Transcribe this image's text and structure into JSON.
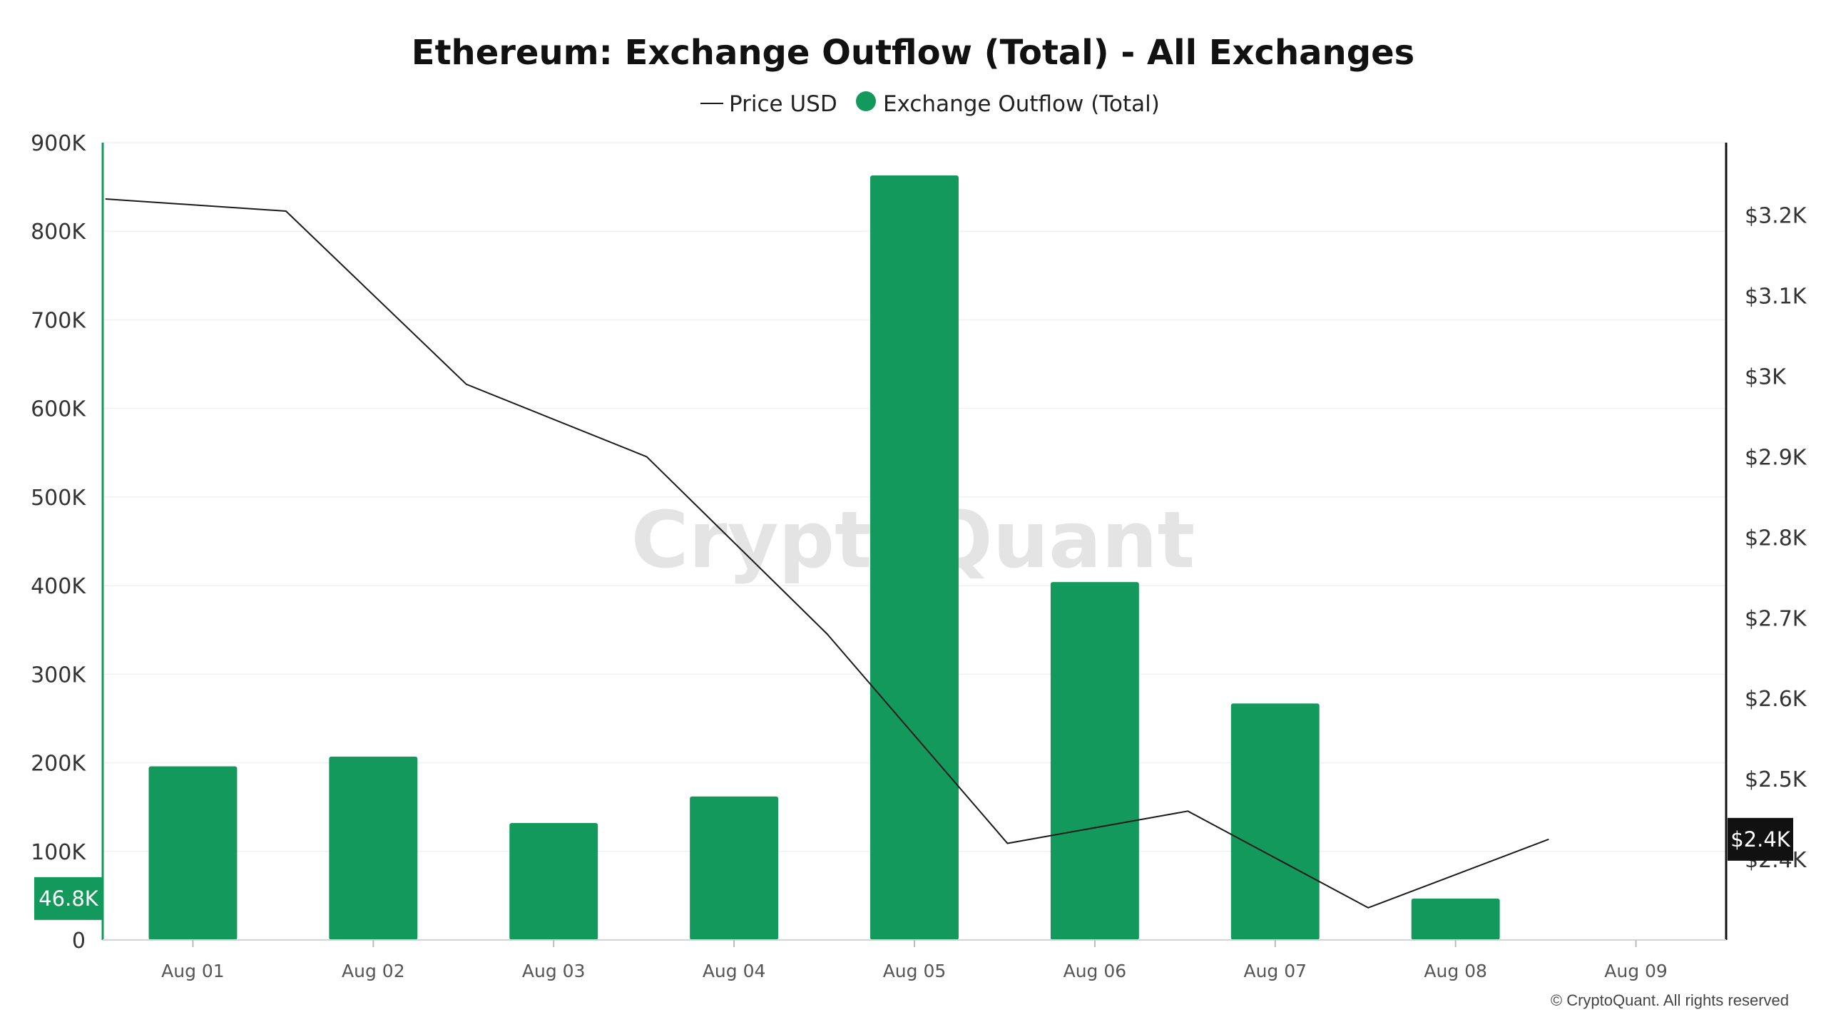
{
  "chart_data": {
    "type": "bar",
    "title": "Ethereum: Exchange Outflow (Total) - All Exchanges",
    "categories": [
      "Aug 01",
      "Aug 02",
      "Aug 03",
      "Aug 04",
      "Aug 05",
      "Aug 06",
      "Aug 07",
      "Aug 08",
      "Aug 09"
    ],
    "series": [
      {
        "name": "Exchange Outflow (Total)",
        "type": "bar",
        "axis": "left",
        "color": "#14995c",
        "values": [
          196000,
          207000,
          132000,
          162000,
          863000,
          404000,
          267000,
          46800,
          null
        ]
      },
      {
        "name": "Price USD",
        "type": "line",
        "axis": "right",
        "color": "#1a1a1a",
        "values": [
          3220,
          3205,
          2990,
          2900,
          2680,
          2420,
          2460,
          2340,
          2425
        ]
      }
    ],
    "y_left": {
      "ylim": [
        0,
        900000
      ],
      "ticks": [
        0,
        100000,
        200000,
        300000,
        400000,
        500000,
        600000,
        700000,
        800000,
        900000
      ],
      "tick_labels": [
        "0",
        "100K",
        "200K",
        "300K",
        "400K",
        "500K",
        "600K",
        "700K",
        "800K",
        "900K"
      ],
      "current_value_label": "46.8K",
      "current_value": 46800,
      "color": "#14995c"
    },
    "y_right": {
      "ylim": [
        2300,
        3290
      ],
      "ticks": [
        2400,
        2500,
        2600,
        2700,
        2800,
        2900,
        3000,
        3100,
        3200
      ],
      "tick_labels": [
        "$2.4K",
        "$2.5K",
        "$2.6K",
        "$2.7K",
        "$2.8K",
        "$2.9K",
        "$3K",
        "$3.1K",
        "$3.2K"
      ],
      "current_value_label": "$2.4K",
      "current_value": 2425,
      "color": "#111111"
    },
    "legend": {
      "placement": "top-center",
      "items": [
        {
          "label": "Price USD",
          "marker": "line",
          "color": "#1a1a1a"
        },
        {
          "label": "Exchange Outflow (Total)",
          "marker": "dot",
          "color": "#14995c"
        }
      ]
    },
    "grid": true
  },
  "watermark": "CryptoQuant",
  "copyright": "© CryptoQuant. All rights reserved"
}
